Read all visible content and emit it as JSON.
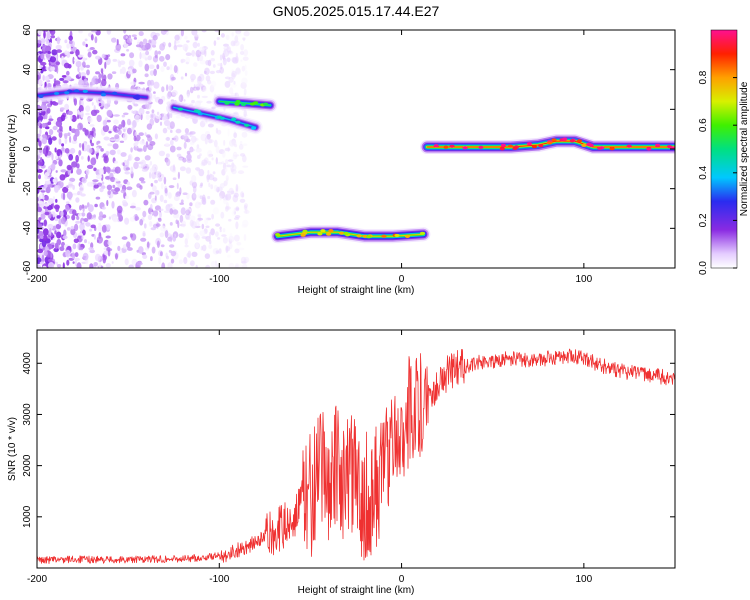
{
  "title": "GN05.2025.015.17.44.E27",
  "chart_data": [
    {
      "type": "heatmap",
      "xlabel": "Height of straight line (km)",
      "ylabel": "Frequency (Hz)",
      "xlim": [
        -200,
        150
      ],
      "ylim": [
        -60,
        60
      ],
      "xticks": [
        -200,
        -100,
        0,
        100
      ],
      "yticks": [
        -60,
        -40,
        -20,
        0,
        20,
        40,
        60
      ],
      "colorbar": {
        "label": "Normalized spectral amplitude",
        "range": [
          0,
          1
        ],
        "ticks": [
          0,
          0.2,
          0.4,
          0.6,
          0.8
        ],
        "tick_labels": [
          "0.0",
          "0.2",
          "0.4",
          "0.6",
          "0.8"
        ]
      },
      "features": [
        {
          "label": "noise",
          "x_range": [
            -200,
            -85
          ],
          "amplitude": 0.1
        },
        {
          "label": "track",
          "points": [
            [
              -200,
              27
            ],
            [
              -180,
              29
            ],
            [
              -160,
              28
            ],
            [
              -140,
              26
            ]
          ],
          "amplitude": 0.3
        },
        {
          "label": "track",
          "points": [
            [
              -125,
              21
            ],
            [
              -110,
              18
            ],
            [
              -95,
              15
            ],
            [
              -80,
              11
            ]
          ],
          "amplitude": 0.4
        },
        {
          "label": "track",
          "points": [
            [
              -100,
              24
            ],
            [
              -85,
              23
            ],
            [
              -72,
              22
            ]
          ],
          "amplitude": 0.55
        },
        {
          "label": "track",
          "points": [
            [
              -68,
              -44
            ],
            [
              -50,
              -42
            ],
            [
              -35,
              -42
            ],
            [
              -20,
              -44
            ],
            [
              -5,
              -44
            ],
            [
              12,
              -43
            ]
          ],
          "amplitude": 0.75
        },
        {
          "label": "track",
          "points": [
            [
              14,
              1
            ],
            [
              40,
              1
            ],
            [
              60,
              1
            ],
            [
              75,
              2
            ],
            [
              85,
              4
            ],
            [
              95,
              4
            ],
            [
              105,
              1
            ],
            [
              130,
              1
            ],
            [
              150,
              1
            ]
          ],
          "amplitude": 0.9
        }
      ]
    },
    {
      "type": "line",
      "xlabel": "Height of straight line (km)",
      "ylabel": "SNR (10 * v/v)",
      "xlim": [
        -200,
        150
      ],
      "ylim": [
        0,
        4650
      ],
      "xticks": [
        -200,
        -100,
        0,
        100
      ],
      "yticks": [
        1000,
        2000,
        3000,
        4000
      ],
      "color": "#ef3131",
      "series": [
        {
          "x": [
            -200,
            -180,
            -160,
            -140,
            -120,
            -110,
            -100,
            -95,
            -90,
            -85,
            -80,
            -75,
            -70,
            -65,
            -60,
            -55,
            -50,
            -45,
            -40,
            -35,
            -30,
            -25,
            -20,
            -18,
            -15,
            -10,
            -5,
            0,
            5,
            10,
            15,
            20,
            25,
            30,
            40,
            50,
            60,
            70,
            80,
            90,
            100,
            110,
            120,
            130,
            140,
            150
          ],
          "y": [
            150,
            170,
            160,
            170,
            180,
            200,
            240,
            280,
            350,
            420,
            500,
            600,
            700,
            800,
            1000,
            1200,
            1500,
            1700,
            1850,
            1900,
            1800,
            1600,
            1400,
            1450,
            1500,
            2000,
            2500,
            2800,
            3100,
            3200,
            3400,
            3600,
            3800,
            3900,
            4000,
            4050,
            4100,
            4050,
            4100,
            4150,
            4100,
            3950,
            3850,
            3800,
            3750,
            3700
          ]
        }
      ]
    }
  ]
}
